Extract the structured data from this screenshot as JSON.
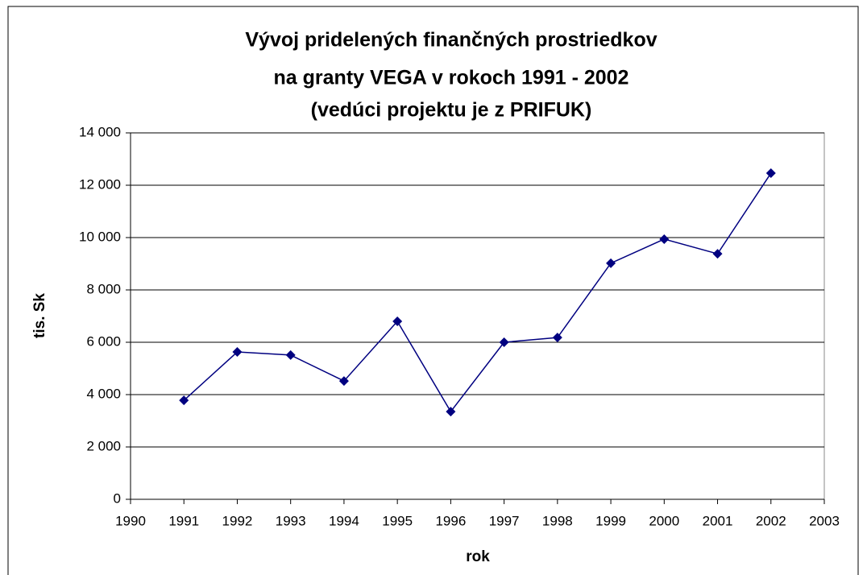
{
  "chart_data": {
    "type": "line",
    "title": [
      "Vývoj pridelených  finančných prostriedkov",
      "na granty VEGA  v rokoch 1991 - 2002",
      "(vedúci projektu je z PRIFUK)"
    ],
    "x_label": "rok",
    "y_label": "tis. Sk",
    "x": [
      1991,
      1992,
      1993,
      1994,
      1995,
      1996,
      1997,
      1998,
      1999,
      2000,
      2001,
      2002
    ],
    "series": [
      {
        "color": "#000080",
        "values": [
          3780,
          5630,
          5510,
          4520,
          6800,
          3350,
          6000,
          6180,
          9020,
          9940,
          9380,
          12460
        ]
      }
    ],
    "xlim": [
      1990,
      2003
    ],
    "xticks": [
      1990,
      1991,
      1992,
      1993,
      1994,
      1995,
      1996,
      1997,
      1998,
      1999,
      2000,
      2001,
      2002,
      2003
    ],
    "ylim": [
      0,
      14000
    ],
    "yticks": [
      0,
      {
        "value": 2000,
        "label": "2 000"
      },
      {
        "value": 4000,
        "label": "4 000"
      },
      {
        "value": 6000,
        "label": "6 000"
      },
      {
        "value": 8000,
        "label": "8 000"
      },
      {
        "value": 10000,
        "label": "10 000"
      },
      {
        "value": 12000,
        "label": "12 000"
      },
      {
        "value": 14000,
        "label": "14 000"
      }
    ],
    "grid": true
  }
}
